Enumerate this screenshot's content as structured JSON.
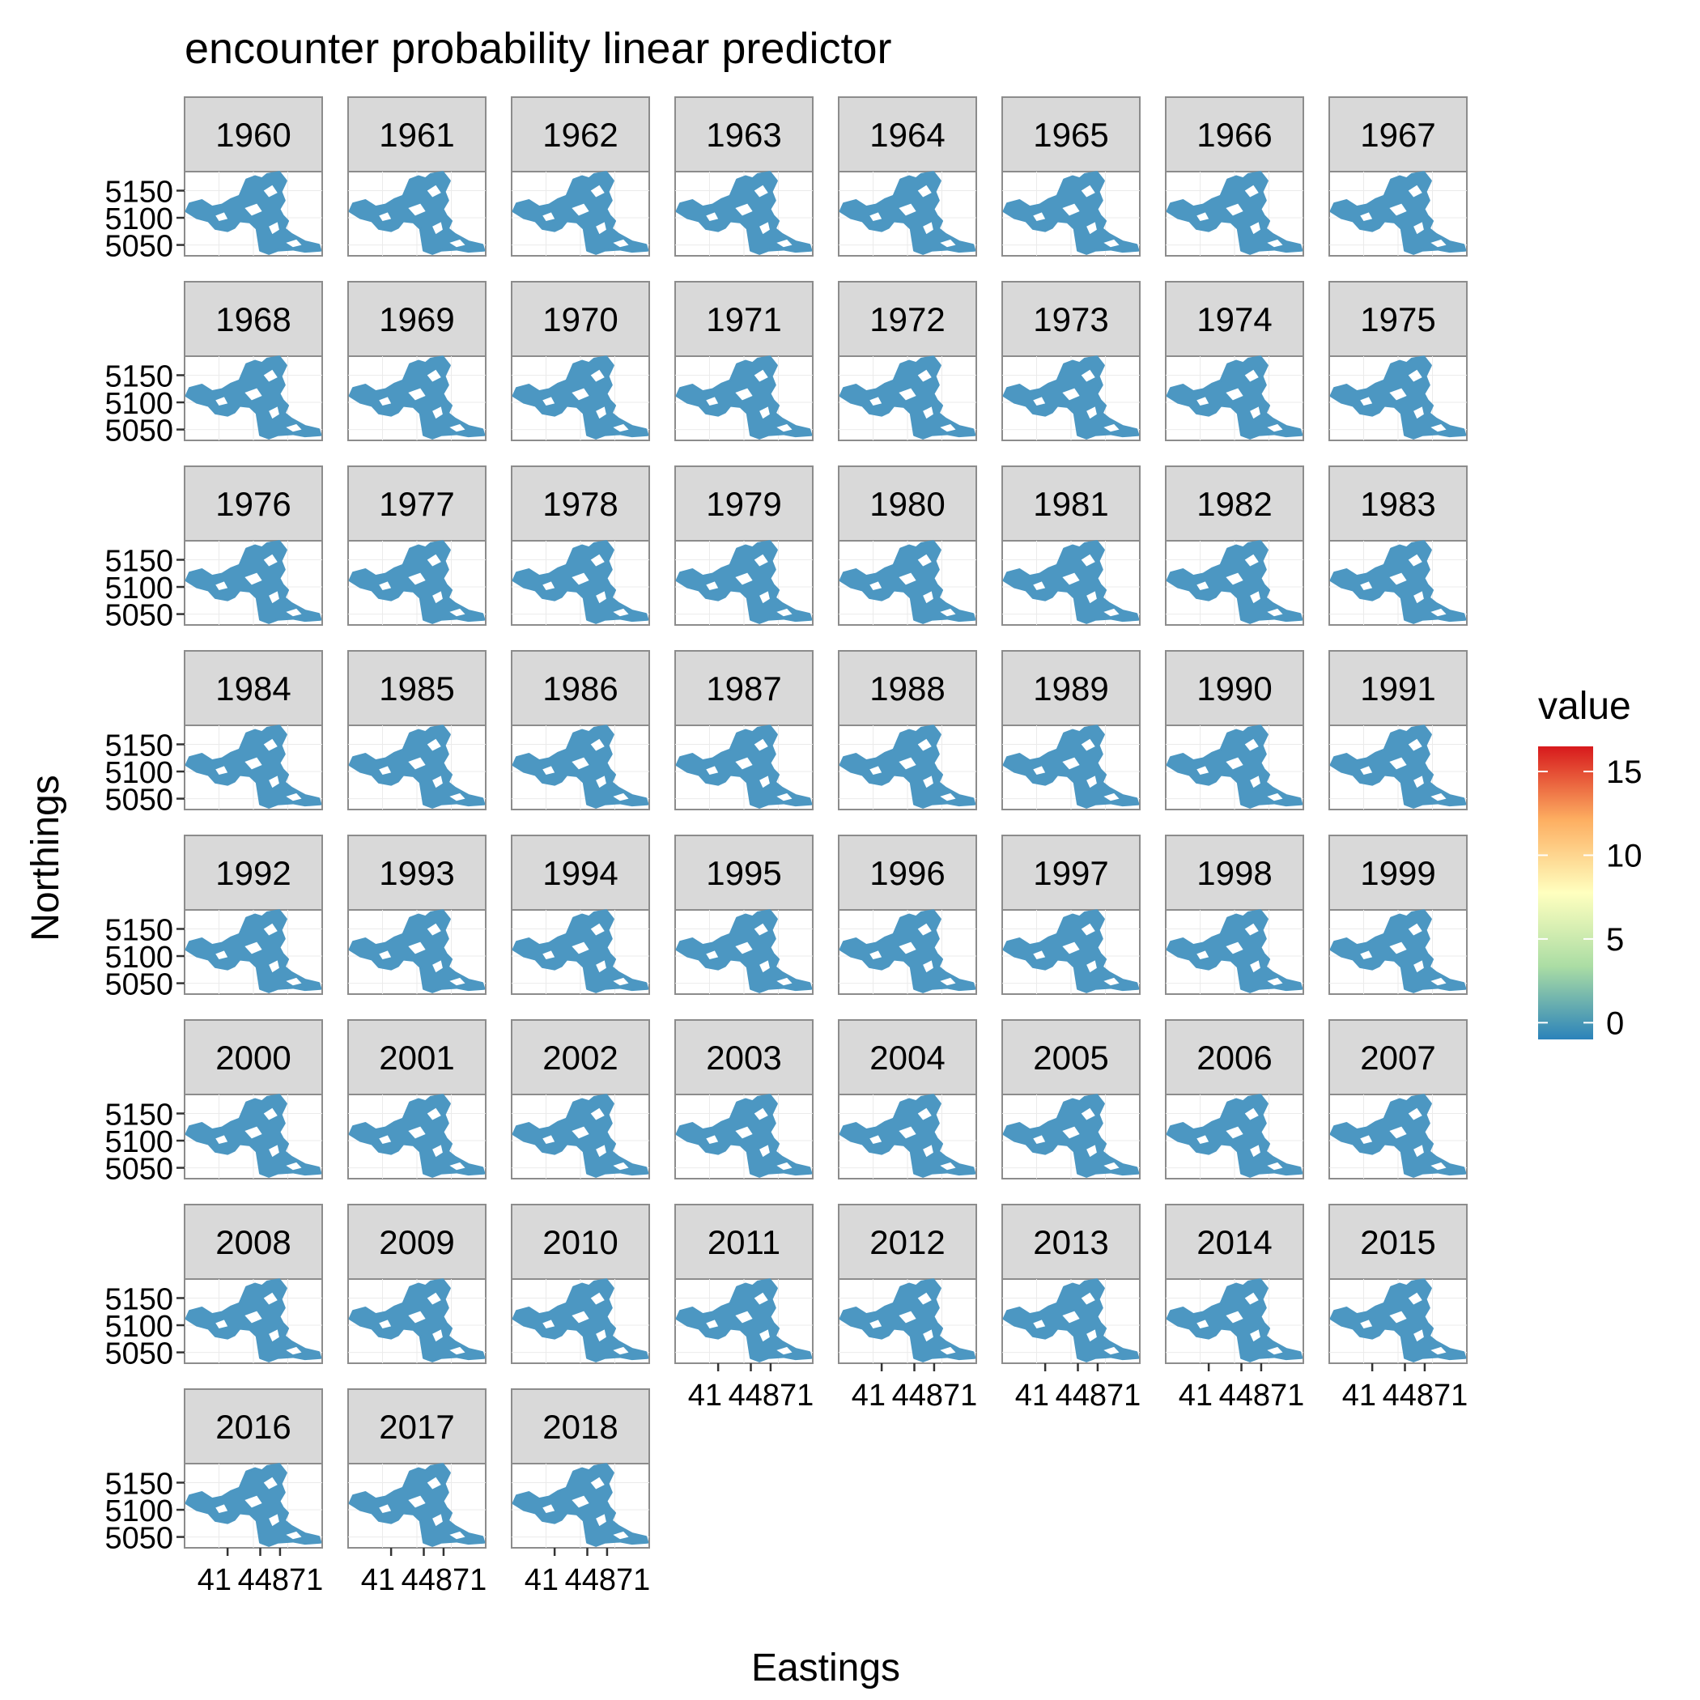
{
  "chart_data": {
    "type": "heatmap",
    "title": "encounter probability linear predictor",
    "xlabel": "Eastings",
    "ylabel": "Northings",
    "facets": [
      "1960",
      "1961",
      "1962",
      "1963",
      "1964",
      "1965",
      "1966",
      "1967",
      "1968",
      "1969",
      "1970",
      "1971",
      "1972",
      "1973",
      "1974",
      "1975",
      "1976",
      "1977",
      "1978",
      "1979",
      "1980",
      "1981",
      "1982",
      "1983",
      "1984",
      "1985",
      "1986",
      "1987",
      "1988",
      "1989",
      "1990",
      "1991",
      "1992",
      "1993",
      "1994",
      "1995",
      "1996",
      "1997",
      "1998",
      "1999",
      "2000",
      "2001",
      "2002",
      "2003",
      "2004",
      "2005",
      "2006",
      "2007",
      "2008",
      "2009",
      "2010",
      "2011",
      "2012",
      "2013",
      "2014",
      "2015",
      "2016",
      "2017",
      "2018"
    ],
    "facet_columns": 8,
    "y_ticks": [
      5050,
      5100,
      5150
    ],
    "ylim": [
      5030,
      5185
    ],
    "x_ticks": [
      410,
      448,
      471
    ],
    "xlim": [
      360,
      520
    ],
    "x_tick_labels_text": "41 448​71",
    "x_tick_labels": [
      "410",
      "448",
      "471"
    ],
    "fill_value": 0,
    "point_color": "#4c97c2",
    "legend": {
      "title": "value",
      "position": "right",
      "min": -1,
      "max": 16.5,
      "breaks": [
        0,
        5,
        10,
        15
      ],
      "colors": [
        "#2b83ba",
        "#abdda4",
        "#ffffbf",
        "#fdae61",
        "#d7191c"
      ]
    }
  }
}
